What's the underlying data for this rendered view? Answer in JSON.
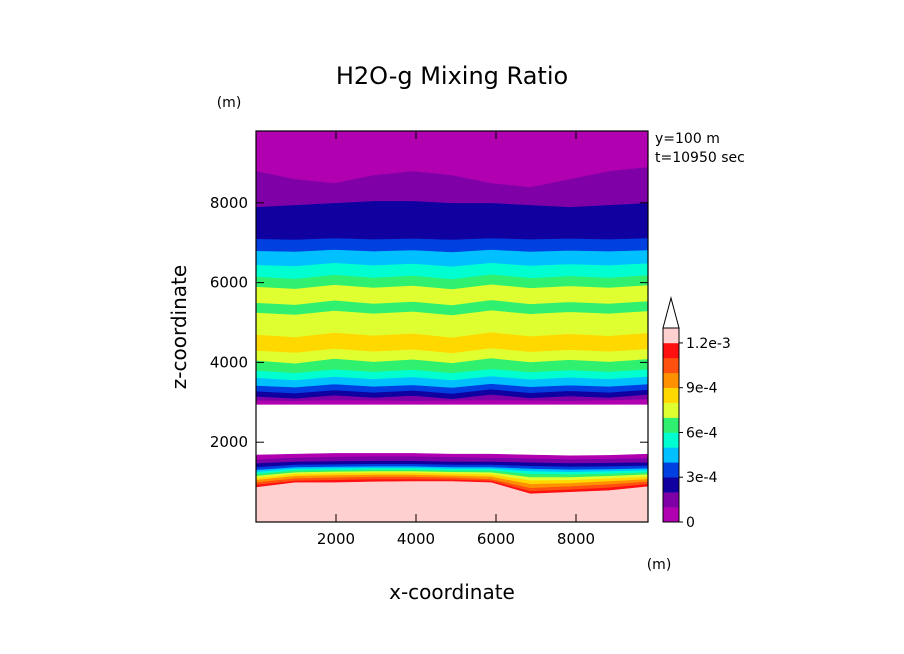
{
  "chart_data": {
    "type": "contour",
    "title": "H2O-g Mixing Ratio",
    "xlabel": "x-coordinate",
    "ylabel": "z-coordinate",
    "x_unit": "(m)",
    "y_unit": "(m)",
    "annotations": [
      "y=100 m",
      "t=10950 sec"
    ],
    "xlim": [
      0,
      9800
    ],
    "ylim": [
      0,
      9800
    ],
    "xticks": [
      2000,
      4000,
      6000,
      8000
    ],
    "xtick_labels": [
      "2000",
      "4000",
      "6000",
      "8000"
    ],
    "yticks": [
      2000,
      4000,
      6000,
      8000
    ],
    "ytick_labels": [
      "2000",
      "4000",
      "6000",
      "8000"
    ],
    "colorbar": {
      "min": 0,
      "max": 0.0012,
      "step": 0.0001,
      "tick_values": [
        0,
        0.0003,
        0.0006,
        0.0009,
        0.0012
      ],
      "tick_labels": [
        "0",
        "3e-4",
        "6e-4",
        "9e-4",
        "1.2e-3"
      ],
      "colors": [
        "#b000b0",
        "#8000a8",
        "#1000a0",
        "#0040e0",
        "#00c0ff",
        "#00ffd0",
        "#30f070",
        "#e0ff30",
        "#ffd800",
        "#ff9000",
        "#ff5010",
        "#ff1010",
        "#ffd0d0"
      ]
    },
    "bands": [
      {
        "level": 12,
        "bottom": [
          0,
          0,
          0,
          0,
          0,
          0,
          0,
          0,
          0,
          0,
          0
        ],
        "top": [
          880,
          1000,
          1000,
          1020,
          1030,
          1030,
          1000,
          720,
          760,
          800,
          900
        ]
      },
      {
        "level": 11,
        "bottom": [
          880,
          1000,
          1000,
          1020,
          1030,
          1030,
          1000,
          720,
          760,
          800,
          900
        ],
        "top": [
          940,
          1040,
          1060,
          1080,
          1080,
          1070,
          1040,
          780,
          820,
          870,
          960
        ]
      },
      {
        "level": 10,
        "bottom": [
          940,
          1040,
          1060,
          1080,
          1080,
          1070,
          1040,
          780,
          820,
          870,
          960
        ],
        "top": [
          1000,
          1100,
          1120,
          1140,
          1140,
          1120,
          1080,
          860,
          900,
          950,
          1020
        ]
      },
      {
        "level": 9,
        "bottom": [
          1000,
          1100,
          1120,
          1140,
          1140,
          1120,
          1080,
          860,
          900,
          950,
          1020
        ],
        "top": [
          1060,
          1160,
          1180,
          1190,
          1190,
          1170,
          1140,
          960,
          980,
          1030,
          1080
        ]
      },
      {
        "level": 8,
        "bottom": [
          1060,
          1160,
          1180,
          1190,
          1190,
          1170,
          1140,
          960,
          980,
          1030,
          1080
        ],
        "top": [
          1110,
          1210,
          1230,
          1240,
          1240,
          1220,
          1200,
          1050,
          1060,
          1100,
          1140
        ]
      },
      {
        "level": 7,
        "bottom": [
          1110,
          1210,
          1230,
          1240,
          1240,
          1220,
          1200,
          1050,
          1060,
          1100,
          1140
        ],
        "top": [
          1160,
          1250,
          1270,
          1280,
          1280,
          1260,
          1250,
          1130,
          1130,
          1160,
          1200
        ]
      },
      {
        "level": 6,
        "bottom": [
          1160,
          1250,
          1270,
          1280,
          1280,
          1260,
          1250,
          1130,
          1130,
          1160,
          1200
        ],
        "top": [
          1210,
          1300,
          1310,
          1320,
          1320,
          1300,
          1300,
          1210,
          1200,
          1220,
          1250
        ]
      },
      {
        "level": 5,
        "bottom": [
          1210,
          1300,
          1310,
          1320,
          1320,
          1300,
          1300,
          1210,
          1200,
          1220,
          1250
        ],
        "top": [
          1260,
          1340,
          1350,
          1360,
          1360,
          1340,
          1340,
          1280,
          1260,
          1280,
          1300
        ]
      },
      {
        "level": 4,
        "bottom": [
          1260,
          1340,
          1350,
          1360,
          1360,
          1340,
          1340,
          1280,
          1260,
          1280,
          1300
        ],
        "top": [
          1310,
          1380,
          1390,
          1400,
          1400,
          1380,
          1380,
          1340,
          1320,
          1330,
          1350
        ]
      },
      {
        "level": 3,
        "bottom": [
          1310,
          1380,
          1390,
          1400,
          1400,
          1380,
          1380,
          1340,
          1320,
          1330,
          1350
        ],
        "top": [
          1380,
          1440,
          1450,
          1460,
          1460,
          1440,
          1440,
          1410,
          1390,
          1400,
          1420
        ]
      },
      {
        "level": 2,
        "bottom": [
          1380,
          1440,
          1450,
          1460,
          1460,
          1440,
          1440,
          1410,
          1390,
          1400,
          1420
        ],
        "top": [
          1480,
          1520,
          1530,
          1540,
          1540,
          1520,
          1520,
          1500,
          1480,
          1490,
          1500
        ]
      },
      {
        "level": 1,
        "bottom": [
          1480,
          1520,
          1530,
          1540,
          1540,
          1520,
          1520,
          1500,
          1480,
          1490,
          1500
        ],
        "top": [
          1580,
          1620,
          1640,
          1650,
          1650,
          1630,
          1620,
          1600,
          1580,
          1590,
          1610
        ]
      },
      {
        "level": 0,
        "bottom": [
          1580,
          1620,
          1640,
          1650,
          1650,
          1630,
          1620,
          1600,
          1580,
          1590,
          1610
        ],
        "top": [
          1680,
          1700,
          1720,
          1720,
          1720,
          1700,
          1700,
          1680,
          1660,
          1670,
          1700
        ]
      },
      {
        "level": 0,
        "bottom": [
          2950,
          2950,
          2950,
          2950,
          2950,
          2950,
          2950,
          2950,
          2950,
          2950,
          2950
        ],
        "top": [
          3050,
          3040,
          3060,
          3050,
          3040,
          3050,
          3060,
          3050,
          3040,
          3060,
          3080
        ]
      },
      {
        "level": 1,
        "bottom": [
          3050,
          3040,
          3060,
          3050,
          3040,
          3050,
          3060,
          3050,
          3040,
          3060,
          3080
        ],
        "top": [
          3150,
          3100,
          3180,
          3120,
          3170,
          3090,
          3200,
          3110,
          3160,
          3120,
          3200
        ]
      },
      {
        "level": 2,
        "bottom": [
          3150,
          3100,
          3180,
          3120,
          3170,
          3090,
          3200,
          3110,
          3160,
          3120,
          3200
        ],
        "top": [
          3280,
          3230,
          3310,
          3250,
          3300,
          3220,
          3330,
          3240,
          3290,
          3250,
          3320
        ]
      },
      {
        "level": 3,
        "bottom": [
          3280,
          3230,
          3310,
          3250,
          3300,
          3220,
          3330,
          3240,
          3290,
          3250,
          3320
        ],
        "top": [
          3420,
          3380,
          3460,
          3400,
          3440,
          3370,
          3470,
          3390,
          3430,
          3400,
          3460
        ]
      },
      {
        "level": 4,
        "bottom": [
          3420,
          3380,
          3460,
          3400,
          3440,
          3370,
          3470,
          3390,
          3430,
          3400,
          3460
        ],
        "top": [
          3620,
          3560,
          3650,
          3590,
          3640,
          3560,
          3660,
          3580,
          3630,
          3590,
          3650
        ]
      },
      {
        "level": 5,
        "bottom": [
          3620,
          3560,
          3650,
          3590,
          3640,
          3560,
          3660,
          3580,
          3630,
          3590,
          3650
        ],
        "top": [
          3800,
          3740,
          3830,
          3770,
          3820,
          3740,
          3840,
          3760,
          3810,
          3770,
          3830
        ]
      },
      {
        "level": 6,
        "bottom": [
          3800,
          3740,
          3830,
          3770,
          3820,
          3740,
          3840,
          3760,
          3810,
          3770,
          3830
        ],
        "top": [
          4050,
          3980,
          4100,
          4020,
          4080,
          3990,
          4110,
          4010,
          4070,
          4020,
          4090
        ]
      },
      {
        "level": 7,
        "bottom": [
          4050,
          3980,
          4100,
          4020,
          4080,
          3990,
          4110,
          4010,
          4070,
          4020,
          4090
        ],
        "top": [
          4300,
          4250,
          4350,
          4280,
          4330,
          4240,
          4360,
          4270,
          4320,
          4280,
          4340
        ]
      },
      {
        "level": 8,
        "bottom": [
          4300,
          4250,
          4350,
          4280,
          4330,
          4240,
          4360,
          4270,
          4320,
          4280,
          4340
        ],
        "top": [
          4700,
          4640,
          4750,
          4680,
          4730,
          4630,
          4760,
          4660,
          4720,
          4670,
          4740
        ]
      },
      {
        "level": 7,
        "bottom": [
          4700,
          4640,
          4750,
          4680,
          4730,
          4630,
          4760,
          4660,
          4720,
          4670,
          4740
        ],
        "top": [
          5250,
          5200,
          5300,
          5230,
          5280,
          5190,
          5310,
          5220,
          5270,
          5230,
          5290
        ]
      },
      {
        "level": 6,
        "bottom": [
          5250,
          5200,
          5300,
          5230,
          5280,
          5190,
          5310,
          5220,
          5270,
          5230,
          5290
        ],
        "top": [
          5500,
          5450,
          5560,
          5480,
          5530,
          5440,
          5570,
          5470,
          5520,
          5480,
          5540
        ]
      },
      {
        "level": 7,
        "bottom": [
          5500,
          5450,
          5560,
          5480,
          5530,
          5440,
          5570,
          5470,
          5520,
          5480,
          5540
        ],
        "top": [
          5900,
          5850,
          5950,
          5880,
          5930,
          5840,
          5960,
          5870,
          5920,
          5880,
          5940
        ]
      },
      {
        "level": 6,
        "bottom": [
          5900,
          5850,
          5950,
          5880,
          5930,
          5840,
          5960,
          5870,
          5920,
          5880,
          5940
        ],
        "top": [
          6150,
          6100,
          6200,
          6130,
          6180,
          6090,
          6210,
          6120,
          6170,
          6130,
          6190
        ]
      },
      {
        "level": 5,
        "bottom": [
          6150,
          6100,
          6200,
          6130,
          6180,
          6090,
          6210,
          6120,
          6170,
          6130,
          6190
        ],
        "top": [
          6450,
          6420,
          6500,
          6440,
          6480,
          6410,
          6500,
          6430,
          6470,
          6440,
          6490
        ]
      },
      {
        "level": 4,
        "bottom": [
          6450,
          6420,
          6500,
          6440,
          6480,
          6410,
          6500,
          6430,
          6470,
          6440,
          6490
        ],
        "top": [
          6800,
          6780,
          6830,
          6790,
          6820,
          6770,
          6830,
          6780,
          6810,
          6790,
          6820
        ]
      },
      {
        "level": 3,
        "bottom": [
          6800,
          6780,
          6830,
          6790,
          6820,
          6770,
          6830,
          6780,
          6810,
          6790,
          6820
        ],
        "top": [
          7100,
          7080,
          7120,
          7090,
          7110,
          7080,
          7120,
          7090,
          7110,
          7090,
          7120
        ]
      },
      {
        "level": 2,
        "bottom": [
          7100,
          7080,
          7120,
          7090,
          7110,
          7080,
          7120,
          7090,
          7110,
          7090,
          7120
        ],
        "top": [
          7900,
          7950,
          8000,
          8050,
          8050,
          8000,
          8000,
          7950,
          7900,
          7950,
          8000
        ]
      },
      {
        "level": 1,
        "bottom": [
          7900,
          7950,
          8000,
          8050,
          8050,
          8000,
          8000,
          7950,
          7900,
          7950,
          8000
        ],
        "top": [
          8800,
          8600,
          8500,
          8700,
          8800,
          8700,
          8500,
          8400,
          8600,
          8800,
          8900
        ]
      },
      {
        "level": 0,
        "bottom": [
          8800,
          8600,
          8500,
          8700,
          8800,
          8700,
          8500,
          8400,
          8600,
          8800,
          8900
        ],
        "top": [
          9800,
          9800,
          9800,
          9800,
          9800,
          9800,
          9800,
          9800,
          9800,
          9800,
          9800
        ]
      }
    ]
  }
}
